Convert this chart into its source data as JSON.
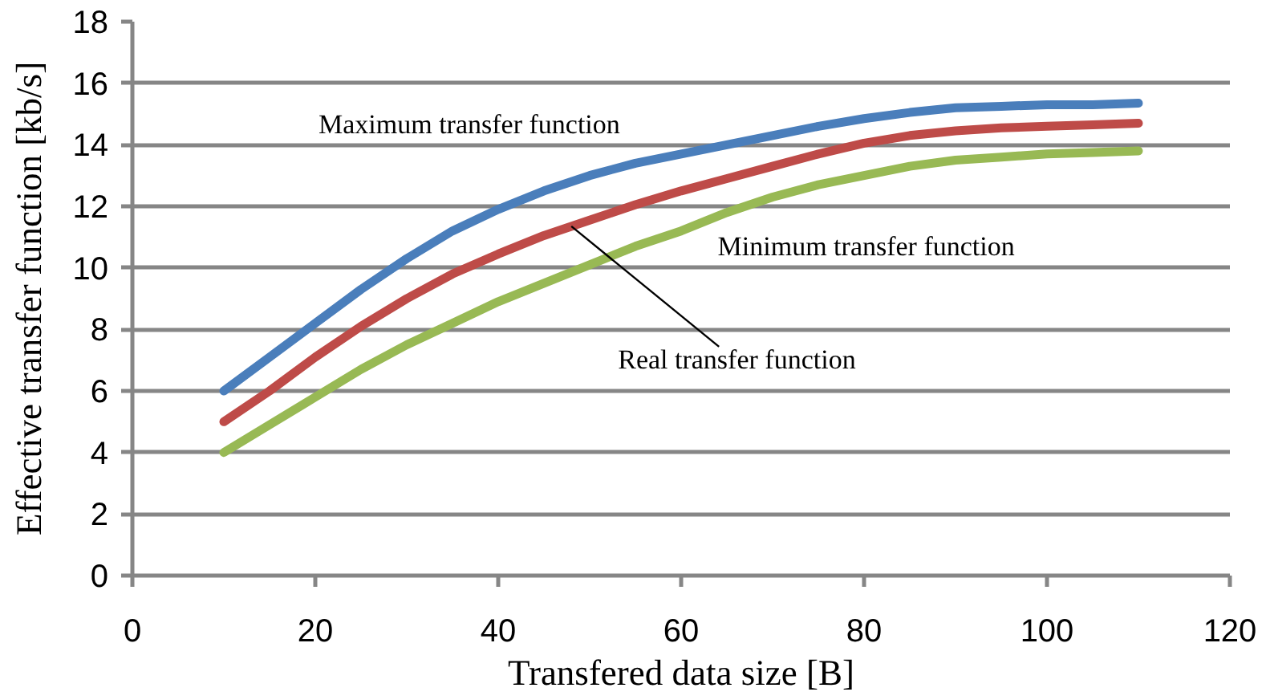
{
  "chart_data": {
    "type": "line",
    "xlabel": "Transfered data size [B]",
    "ylabel": "Effective transfer function [kb/s]",
    "x": [
      10,
      15,
      20,
      25,
      30,
      35,
      40,
      45,
      50,
      55,
      60,
      65,
      70,
      75,
      80,
      85,
      90,
      95,
      100,
      105,
      110
    ],
    "series": [
      {
        "name": "Maximum transfer function",
        "color": "#4a7ebb",
        "values": [
          6.0,
          7.1,
          8.2,
          9.3,
          10.3,
          11.2,
          11.9,
          12.5,
          13.0,
          13.4,
          13.7,
          14.0,
          14.3,
          14.6,
          14.85,
          15.05,
          15.2,
          15.25,
          15.3,
          15.3,
          15.35
        ]
      },
      {
        "color": "#be4b48",
        "values": [
          5.0,
          6.0,
          7.1,
          8.1,
          9.0,
          9.8,
          10.45,
          11.05,
          11.55,
          12.05,
          12.5,
          12.9,
          13.3,
          13.7,
          14.05,
          14.3,
          14.45,
          14.55,
          14.6,
          14.65,
          14.7
        ]
      },
      {
        "name": "Minimum transfer function",
        "color": "#98b954",
        "values": [
          4.0,
          4.9,
          5.8,
          6.7,
          7.5,
          8.2,
          8.9,
          9.5,
          10.1,
          10.7,
          11.2,
          11.8,
          12.3,
          12.7,
          13.0,
          13.3,
          13.5,
          13.6,
          13.7,
          13.75,
          13.8
        ]
      }
    ],
    "annotations": [
      {
        "text": "Real transfer function",
        "x": 48,
        "y": 11.35
      }
    ],
    "xlim": [
      0,
      120
    ],
    "ylim": [
      0,
      18
    ],
    "xticks": [
      0,
      20,
      40,
      60,
      80,
      100,
      120
    ],
    "yticks": [
      0,
      2,
      4,
      6,
      8,
      10,
      12,
      14,
      16,
      18
    ],
    "grid": "y",
    "line_style": "solid"
  }
}
